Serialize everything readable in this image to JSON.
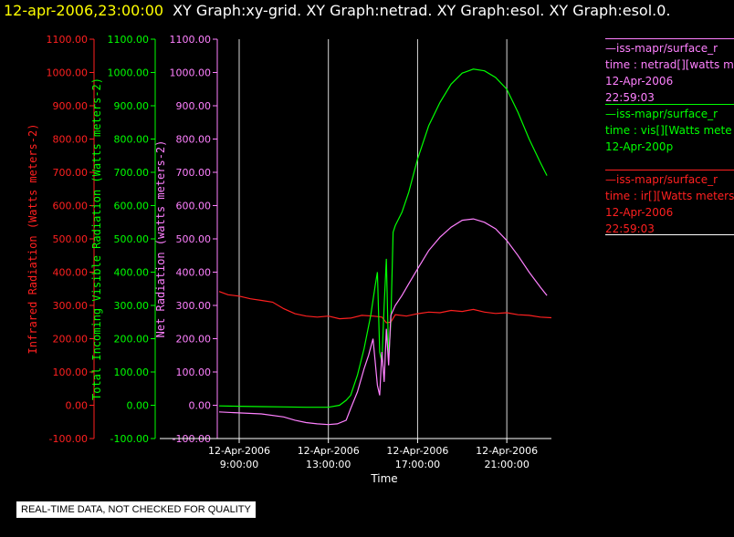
{
  "header": {
    "date": "12-apr-2006,23:00:00",
    "titles": "XY Graph:xy-grid.  XY Graph:netrad.  XY Graph:esol.  XY Graph:esol.0."
  },
  "legend": [
    {
      "lines": [
        "—iss-mapr/surface_r",
        "time : netrad[][watts m",
        "12-Apr-2006",
        "22:59:03"
      ],
      "color": "#ff80ff"
    },
    {
      "lines": [
        "—iss-mapr/surface_r",
        "time : vis[][Watts mete",
        "12-Apr-200p"
      ],
      "color": "#00ff00"
    },
    {
      "lines": [
        "—iss-mapr/surface_r",
        "time : ir[][Watts meters",
        "12-Apr-2006",
        "22:59:03"
      ],
      "color": "#ff2020"
    }
  ],
  "banner": "REAL-TIME DATA, NOT CHECKED FOR QUALITY",
  "chart_data": {
    "type": "line",
    "xlabel": "Time",
    "x_ticks": [
      {
        "date": "12-Apr-2006",
        "time": "9:00:00",
        "hour": 9
      },
      {
        "date": "12-Apr-2006",
        "time": "13:00:00",
        "hour": 13
      },
      {
        "date": "12-Apr-2006",
        "time": "17:00:00",
        "hour": 17
      },
      {
        "date": "12-Apr-2006",
        "time": "21:00:00",
        "hour": 21
      }
    ],
    "xlim_hours": [
      5.1,
      23.0
    ],
    "grid": "vertical lines at tick times",
    "axes": [
      {
        "label": "Infrared Radiation (Watts meters-2)",
        "color": "#ff2020",
        "ylim": [
          -100,
          1100
        ],
        "ticks": [
          "-100.00",
          "0.00",
          "100.00",
          "200.00",
          "300.00",
          "400.00",
          "500.00",
          "600.00",
          "700.00",
          "800.00",
          "900.00",
          "1000.00",
          "1100.00"
        ]
      },
      {
        "label": "Total Incoming Visible Radiation (Watts meters-2)",
        "color": "#00ff00",
        "ylim": [
          -100,
          1100
        ],
        "ticks": [
          "-100.00",
          "0.00",
          "100.00",
          "200.00",
          "300.00",
          "400.00",
          "500.00",
          "600.00",
          "700.00",
          "800.00",
          "900.00",
          "1000.00",
          "1100.00"
        ]
      },
      {
        "label": "Net Radiation (watts meters-2)",
        "color": "#ff80ff",
        "ylim": [
          -100,
          1100
        ],
        "ticks": [
          "-100.00",
          "0.00",
          "100.00",
          "200.00",
          "300.00",
          "400.00",
          "500.00",
          "600.00",
          "700.00",
          "800.00",
          "900.00",
          "1000.00",
          "1100.00"
        ]
      }
    ],
    "series": [
      {
        "name": "ir",
        "color": "#ff2020",
        "points": [
          [
            8.1,
            342
          ],
          [
            8.5,
            332
          ],
          [
            9.0,
            328
          ],
          [
            9.5,
            320
          ],
          [
            10.0,
            315
          ],
          [
            10.5,
            310
          ],
          [
            11.0,
            290
          ],
          [
            11.5,
            275
          ],
          [
            12.0,
            268
          ],
          [
            12.5,
            265
          ],
          [
            13.0,
            268
          ],
          [
            13.5,
            260
          ],
          [
            14.0,
            262
          ],
          [
            14.5,
            270
          ],
          [
            15.0,
            268
          ],
          [
            15.4,
            265
          ],
          [
            15.6,
            248
          ],
          [
            15.8,
            250
          ],
          [
            16.0,
            272
          ],
          [
            16.5,
            268
          ],
          [
            17.0,
            275
          ],
          [
            17.5,
            280
          ],
          [
            18.0,
            278
          ],
          [
            18.5,
            285
          ],
          [
            19.0,
            282
          ],
          [
            19.5,
            288
          ],
          [
            20.0,
            280
          ],
          [
            20.5,
            276
          ],
          [
            21.0,
            278
          ],
          [
            21.5,
            272
          ],
          [
            22.0,
            270
          ],
          [
            22.5,
            265
          ],
          [
            23.0,
            263
          ]
        ]
      },
      {
        "name": "vis",
        "color": "#00ff00",
        "points": [
          [
            8.1,
            -2
          ],
          [
            9.0,
            -3
          ],
          [
            10.0,
            -4
          ],
          [
            11.0,
            -5
          ],
          [
            12.0,
            -6
          ],
          [
            13.0,
            -6
          ],
          [
            13.5,
            0
          ],
          [
            13.8,
            15
          ],
          [
            14.0,
            30
          ],
          [
            14.3,
            90
          ],
          [
            14.6,
            170
          ],
          [
            14.9,
            270
          ],
          [
            15.1,
            360
          ],
          [
            15.2,
            400
          ],
          [
            15.3,
            160
          ],
          [
            15.4,
            130
          ],
          [
            15.5,
            300
          ],
          [
            15.6,
            440
          ],
          [
            15.7,
            140
          ],
          [
            15.8,
            250
          ],
          [
            15.9,
            520
          ],
          [
            16.0,
            540
          ],
          [
            16.3,
            580
          ],
          [
            16.6,
            640
          ],
          [
            17.0,
            740
          ],
          [
            17.5,
            840
          ],
          [
            18.0,
            910
          ],
          [
            18.5,
            965
          ],
          [
            19.0,
            998
          ],
          [
            19.5,
            1010
          ],
          [
            20.0,
            1005
          ],
          [
            20.5,
            985
          ],
          [
            21.0,
            950
          ],
          [
            21.5,
            880
          ],
          [
            22.0,
            800
          ],
          [
            22.5,
            730
          ],
          [
            22.8,
            690
          ]
        ]
      },
      {
        "name": "netrad",
        "color": "#ff80ff",
        "points": [
          [
            8.1,
            -20
          ],
          [
            9.0,
            -23
          ],
          [
            10.0,
            -26
          ],
          [
            11.0,
            -35
          ],
          [
            11.5,
            -45
          ],
          [
            12.0,
            -52
          ],
          [
            12.5,
            -56
          ],
          [
            13.0,
            -58
          ],
          [
            13.4,
            -56
          ],
          [
            13.8,
            -45
          ],
          [
            14.0,
            -10
          ],
          [
            14.3,
            40
          ],
          [
            14.6,
            110
          ],
          [
            14.8,
            150
          ],
          [
            15.0,
            200
          ],
          [
            15.2,
            60
          ],
          [
            15.3,
            30
          ],
          [
            15.4,
            160
          ],
          [
            15.5,
            70
          ],
          [
            15.6,
            230
          ],
          [
            15.7,
            120
          ],
          [
            15.8,
            270
          ],
          [
            16.0,
            300
          ],
          [
            16.3,
            330
          ],
          [
            16.6,
            365
          ],
          [
            17.0,
            410
          ],
          [
            17.5,
            465
          ],
          [
            18.0,
            505
          ],
          [
            18.5,
            535
          ],
          [
            19.0,
            556
          ],
          [
            19.5,
            560
          ],
          [
            20.0,
            550
          ],
          [
            20.5,
            530
          ],
          [
            21.0,
            495
          ],
          [
            21.5,
            450
          ],
          [
            22.0,
            400
          ],
          [
            22.5,
            355
          ],
          [
            22.8,
            330
          ]
        ]
      }
    ]
  }
}
